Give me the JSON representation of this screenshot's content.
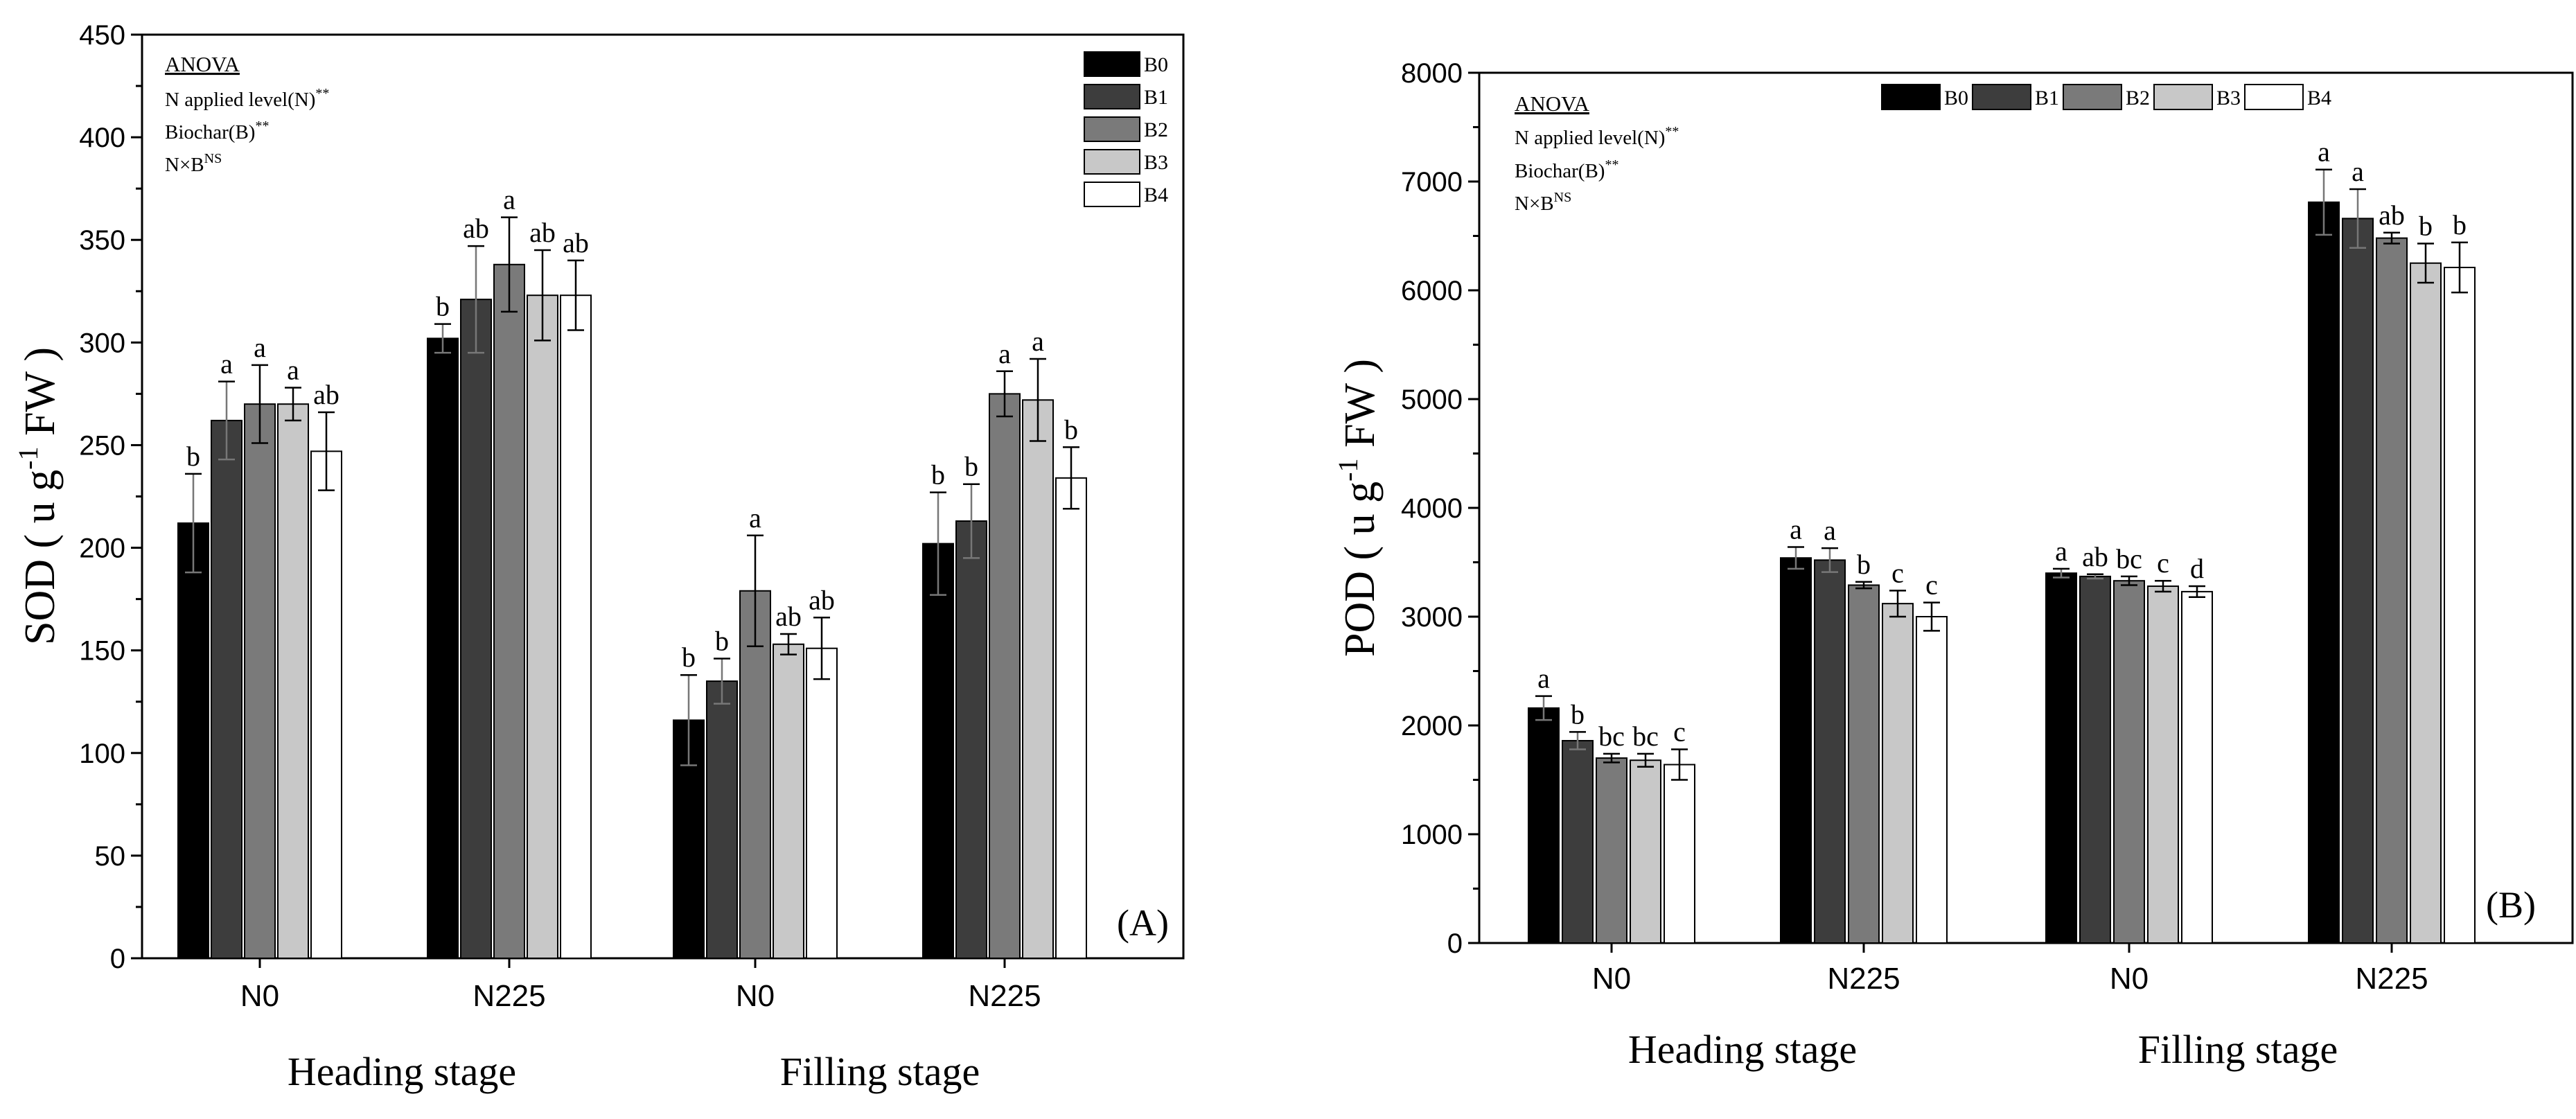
{
  "chart_data": [
    {
      "type": "bar",
      "panel_label": "(A)",
      "ylabel": "SOD ( u g",
      "ylabel_sup": "-1",
      "ylabel_tail": " FW )",
      "ylim": [
        0,
        450
      ],
      "yticks": [
        0,
        50,
        100,
        150,
        200,
        250,
        300,
        350,
        400,
        450
      ],
      "categories": [
        "N0",
        "N225",
        "N0",
        "N225"
      ],
      "stage_labels": [
        "Heading stage",
        "Filling stage"
      ],
      "anova": {
        "title": "ANOVA",
        "lines": [
          {
            "text": "N applied level(N)",
            "sup": "**"
          },
          {
            "text": "Biochar(B)",
            "sup": "**"
          },
          {
            "text": "N×B",
            "sup": "NS"
          }
        ]
      },
      "legend_position": "top-right",
      "series": [
        {
          "name": "B0",
          "color": "#000000",
          "values": [
            212,
            302,
            116,
            202
          ],
          "errors": [
            24,
            7,
            22,
            25
          ],
          "letters": [
            "b",
            "b",
            "b",
            "b"
          ]
        },
        {
          "name": "B1",
          "color": "#3d3d3d",
          "values": [
            262,
            321,
            135,
            213
          ],
          "errors": [
            19,
            26,
            11,
            18
          ],
          "letters": [
            "a",
            "ab",
            "b",
            "b"
          ]
        },
        {
          "name": "B2",
          "color": "#7a7a7a",
          "values": [
            270,
            338,
            179,
            275
          ],
          "errors": [
            19,
            23,
            27,
            11
          ],
          "letters": [
            "a",
            "a",
            "a",
            "a"
          ]
        },
        {
          "name": "B3",
          "color": "#c8c8c8",
          "values": [
            270,
            323,
            153,
            272
          ],
          "errors": [
            8,
            22,
            5,
            20
          ],
          "letters": [
            "a",
            "ab",
            "ab",
            "a"
          ]
        },
        {
          "name": "B4",
          "color": "#ffffff",
          "values": [
            247,
            323,
            151,
            234
          ],
          "errors": [
            19,
            17,
            15,
            15
          ],
          "letters": [
            "ab",
            "ab",
            "ab",
            "b"
          ]
        }
      ]
    },
    {
      "type": "bar",
      "panel_label": "(B)",
      "ylabel": "POD ( u g",
      "ylabel_sup": "-1",
      "ylabel_tail": " FW )",
      "ylim": [
        0,
        8000
      ],
      "yticks": [
        0,
        1000,
        2000,
        3000,
        4000,
        5000,
        6000,
        7000,
        8000
      ],
      "categories": [
        "N0",
        "N225",
        "N0",
        "N225"
      ],
      "stage_labels": [
        "Heading stage",
        "Filling stage"
      ],
      "anova": {
        "title": "ANOVA",
        "lines": [
          {
            "text": "N applied level(N)",
            "sup": "**"
          },
          {
            "text": "Biochar(B)",
            "sup": "**"
          },
          {
            "text": "N×B",
            "sup": "NS"
          }
        ]
      },
      "legend_position": "top",
      "series": [
        {
          "name": "B0",
          "color": "#000000",
          "values": [
            2160,
            3540,
            3400,
            6810
          ],
          "errors": [
            110,
            100,
            40,
            300
          ],
          "letters": [
            "a",
            "a",
            "a",
            "a"
          ]
        },
        {
          "name": "B1",
          "color": "#3d3d3d",
          "values": [
            1860,
            3520,
            3370,
            6660
          ],
          "errors": [
            80,
            110,
            20,
            270
          ],
          "letters": [
            "b",
            "a",
            "ab",
            "a"
          ]
        },
        {
          "name": "B2",
          "color": "#7a7a7a",
          "values": [
            1700,
            3290,
            3330,
            6480
          ],
          "errors": [
            40,
            30,
            40,
            50
          ],
          "letters": [
            "bc",
            "b",
            "bc",
            "ab"
          ]
        },
        {
          "name": "B3",
          "color": "#c8c8c8",
          "values": [
            1680,
            3120,
            3280,
            6250
          ],
          "errors": [
            60,
            120,
            50,
            180
          ],
          "letters": [
            "bc",
            "c",
            "c",
            "b"
          ]
        },
        {
          "name": "B4",
          "color": "#ffffff",
          "values": [
            1640,
            3000,
            3230,
            6210
          ],
          "errors": [
            140,
            130,
            50,
            230
          ],
          "letters": [
            "c",
            "c",
            "d",
            "b"
          ]
        }
      ]
    }
  ]
}
